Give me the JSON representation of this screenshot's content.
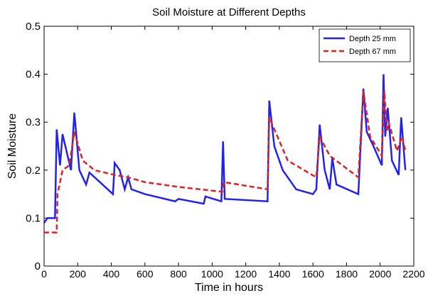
{
  "chart_data": {
    "type": "line",
    "title": "Soil Moisture at Different Depths",
    "xlabel": "Time in hours",
    "ylabel": "Soil Moisture",
    "xlim": [
      0,
      2200
    ],
    "ylim": [
      0,
      0.5
    ],
    "xticks": [
      0,
      200,
      400,
      600,
      800,
      1000,
      1200,
      1400,
      1600,
      1800,
      2000,
      2200
    ],
    "yticks": [
      0,
      0.1,
      0.2,
      0.3,
      0.4,
      0.5
    ],
    "grid": false,
    "legend": "upper right",
    "series": [
      {
        "name": "Depth 25 mm",
        "color": "#2222ee",
        "dash": "solid",
        "x": [
          0,
          20,
          65,
          75,
          95,
          110,
          160,
          180,
          210,
          250,
          270,
          410,
          420,
          450,
          480,
          500,
          520,
          600,
          780,
          800,
          950,
          960,
          1055,
          1065,
          1075,
          1330,
          1340,
          1370,
          1420,
          1500,
          1600,
          1620,
          1640,
          1670,
          1700,
          1715,
          1740,
          1870,
          1900,
          1920,
          1960,
          2010,
          2020,
          2030,
          2045,
          2070,
          2110,
          2125,
          2150
        ],
        "values": [
          0.09,
          0.1,
          0.1,
          0.285,
          0.21,
          0.275,
          0.2,
          0.32,
          0.2,
          0.17,
          0.195,
          0.15,
          0.215,
          0.2,
          0.16,
          0.185,
          0.16,
          0.15,
          0.135,
          0.14,
          0.13,
          0.145,
          0.135,
          0.26,
          0.14,
          0.135,
          0.345,
          0.25,
          0.2,
          0.16,
          0.15,
          0.16,
          0.295,
          0.2,
          0.16,
          0.225,
          0.17,
          0.15,
          0.37,
          0.28,
          0.25,
          0.21,
          0.4,
          0.27,
          0.33,
          0.22,
          0.19,
          0.31,
          0.2
        ]
      },
      {
        "name": "Depth 67 mm",
        "color": "#dd2222",
        "dash": "dashed",
        "x": [
          0,
          75,
          80,
          110,
          150,
          180,
          230,
          300,
          420,
          500,
          600,
          800,
          1060,
          1070,
          1330,
          1340,
          1450,
          1620,
          1640,
          1700,
          1870,
          1900,
          1940,
          2010,
          2025,
          2040,
          2050,
          2100,
          2130,
          2150
        ],
        "values": [
          0.07,
          0.07,
          0.15,
          0.2,
          0.21,
          0.28,
          0.22,
          0.2,
          0.19,
          0.185,
          0.175,
          0.165,
          0.155,
          0.175,
          0.16,
          0.31,
          0.22,
          0.185,
          0.27,
          0.23,
          0.185,
          0.365,
          0.27,
          0.23,
          0.365,
          0.28,
          0.3,
          0.24,
          0.27,
          0.24
        ]
      }
    ]
  }
}
